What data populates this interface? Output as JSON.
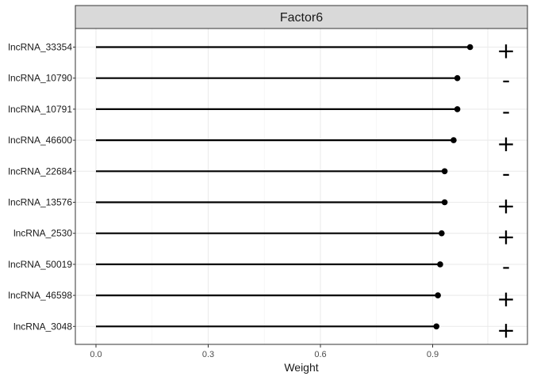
{
  "chart_data": {
    "type": "lollipop",
    "facet_title": "Factor6",
    "xlabel": "Weight",
    "xlim": [
      0,
      1.15
    ],
    "xticks": [
      0.0,
      0.3,
      0.6,
      0.9
    ],
    "xtick_labels": [
      "0.0",
      "0.3",
      "0.6",
      "0.9"
    ],
    "grid": true,
    "categories": [
      "lncRNA_33354",
      "lncRNA_10790",
      "lncRNA_10791",
      "lncRNA_46600",
      "lncRNA_22684",
      "lncRNA_13576",
      "lncRNA_2530",
      "lncRNA_50019",
      "lncRNA_46598",
      "lncRNA_3048"
    ],
    "values": [
      1.0,
      0.966,
      0.966,
      0.956,
      0.932,
      0.932,
      0.924,
      0.92,
      0.914,
      0.91
    ],
    "signs": [
      "+",
      "-",
      "-",
      "+",
      "-",
      "+",
      "+",
      "-",
      "+",
      "+"
    ]
  }
}
